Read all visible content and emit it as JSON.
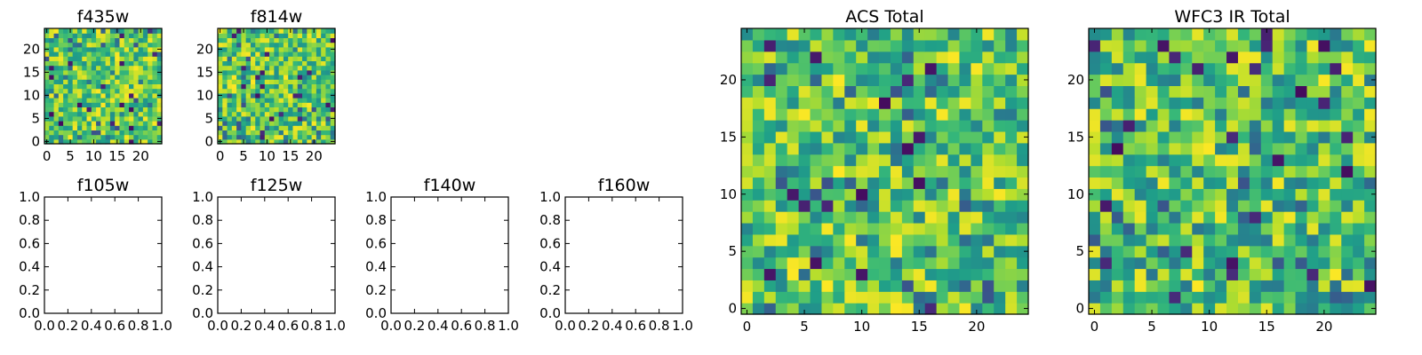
{
  "colormap": "viridis",
  "colors": {
    "background": "#ffffff",
    "axes": "#000000"
  },
  "chart_data": [
    {
      "type": "heatmap",
      "title": "f435w",
      "rows": 25,
      "cols": 25,
      "xlim": [
        -0.5,
        24.5
      ],
      "ylim": [
        -0.5,
        24.5
      ],
      "xticks": [
        0,
        5,
        10,
        15,
        20
      ],
      "yticks": [
        0,
        5,
        10,
        15,
        20
      ],
      "seed": 11,
      "style": "fine"
    },
    {
      "type": "heatmap",
      "title": "f814w",
      "rows": 25,
      "cols": 25,
      "xlim": [
        -0.5,
        24.5
      ],
      "ylim": [
        -0.5,
        24.5
      ],
      "xticks": [
        0,
        5,
        10,
        15,
        20
      ],
      "yticks": [
        0,
        5,
        10,
        15,
        20
      ],
      "seed": 23,
      "style": "fine"
    },
    {
      "type": "empty",
      "title": "f105w",
      "xlim": [
        0,
        1
      ],
      "ylim": [
        0,
        1
      ],
      "xticks": [
        "0.0",
        "0.2",
        "0.4",
        "0.6",
        "0.8",
        "1.0"
      ],
      "yticks": [
        "0.0",
        "0.2",
        "0.4",
        "0.6",
        "0.8",
        "1.0"
      ]
    },
    {
      "type": "empty",
      "title": "f125w",
      "xlim": [
        0,
        1
      ],
      "ylim": [
        0,
        1
      ],
      "xticks": [
        "0.0",
        "0.2",
        "0.4",
        "0.6",
        "0.8",
        "1.0"
      ],
      "yticks": [
        "0.0",
        "0.2",
        "0.4",
        "0.6",
        "0.8",
        "1.0"
      ]
    },
    {
      "type": "empty",
      "title": "f140w",
      "xlim": [
        0,
        1
      ],
      "ylim": [
        0,
        1
      ],
      "xticks": [
        "0.0",
        "0.2",
        "0.4",
        "0.6",
        "0.8",
        "1.0"
      ],
      "yticks": [
        "0.0",
        "0.2",
        "0.4",
        "0.6",
        "0.8",
        "1.0"
      ]
    },
    {
      "type": "empty",
      "title": "f160w",
      "xlim": [
        0,
        1
      ],
      "ylim": [
        0,
        1
      ],
      "xticks": [
        "0.0",
        "0.2",
        "0.4",
        "0.6",
        "0.8",
        "1.0"
      ],
      "yticks": [
        "0.0",
        "0.2",
        "0.4",
        "0.6",
        "0.8",
        "1.0"
      ]
    },
    {
      "type": "heatmap",
      "title": "ACS Total",
      "rows": 25,
      "cols": 25,
      "xlim": [
        -0.5,
        24.5
      ],
      "ylim": [
        -0.5,
        24.5
      ],
      "xticks": [
        0,
        5,
        10,
        15,
        20
      ],
      "yticks": [
        0,
        5,
        10,
        15,
        20
      ],
      "seed": 37,
      "style": "bright"
    },
    {
      "type": "heatmap",
      "title": "WFC3 IR Total",
      "rows": 25,
      "cols": 25,
      "xlim": [
        -0.5,
        24.5
      ],
      "ylim": [
        -0.5,
        24.5
      ],
      "xticks": [
        0,
        5,
        10,
        15,
        20
      ],
      "yticks": [
        0,
        5,
        10,
        15,
        20
      ],
      "seed": 51,
      "style": "mixed"
    }
  ]
}
